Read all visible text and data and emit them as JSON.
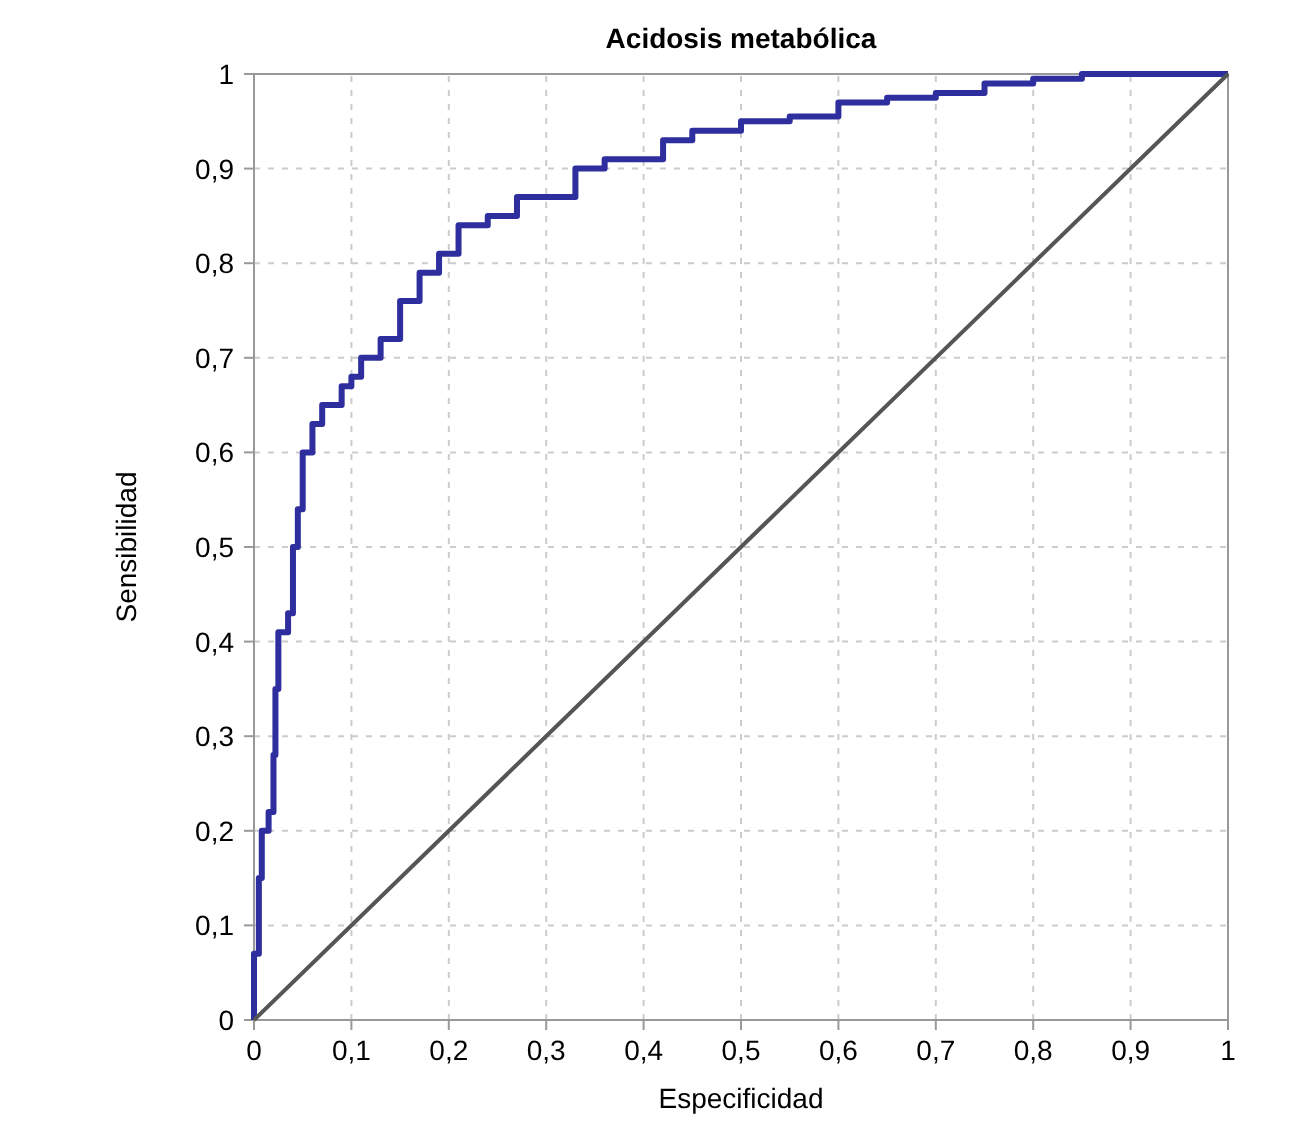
{
  "chart_data": {
    "type": "step",
    "title": "Acidosis metabólica",
    "xlabel": "Especificidad",
    "ylabel": "Sensibilidad",
    "xlim": [
      0,
      1
    ],
    "ylim": [
      0,
      1
    ],
    "xticks": [
      0,
      {
        "value": 0.1,
        "label": "0,1"
      },
      {
        "value": 0.2,
        "label": "0,2"
      },
      {
        "value": 0.3,
        "label": "0,3"
      },
      {
        "value": 0.4,
        "label": "0,4"
      },
      {
        "value": 0.5,
        "label": "0,5"
      },
      {
        "value": 0.6,
        "label": "0,6"
      },
      {
        "value": 0.7,
        "label": "0,7"
      },
      {
        "value": 0.8,
        "label": "0,8"
      },
      {
        "value": 0.9,
        "label": "0,9"
      },
      1
    ],
    "yticks": [
      0,
      {
        "value": 0.1,
        "label": "0,1"
      },
      {
        "value": 0.2,
        "label": "0,2"
      },
      {
        "value": 0.3,
        "label": "0,3"
      },
      {
        "value": 0.4,
        "label": "0,4"
      },
      {
        "value": 0.5,
        "label": "0,5"
      },
      {
        "value": 0.6,
        "label": "0,6"
      },
      {
        "value": 0.7,
        "label": "0,7"
      },
      {
        "value": 0.8,
        "label": "0,8"
      },
      {
        "value": 0.9,
        "label": "0,9"
      },
      1
    ],
    "grid": true,
    "line_style": "solid",
    "marker": "none",
    "series": [
      {
        "type": "step",
        "color": "#2e2e9e",
        "x": [
          0,
          0,
          0.005,
          0.008,
          0.015,
          0.02,
          0.022,
          0.025,
          0.035,
          0.04,
          0.045,
          0.05,
          0.06,
          0.07,
          0.08,
          0.09,
          0.1,
          0.11,
          0.13,
          0.15,
          0.17,
          0.19,
          0.21,
          0.24,
          0.27,
          0.3,
          0.33,
          0.36,
          0.4,
          0.42,
          0.45,
          0.5,
          0.55,
          0.6,
          0.65,
          0.7,
          0.75,
          0.8,
          0.85,
          1
        ],
        "values": [
          0,
          0.07,
          0.15,
          0.2,
          0.22,
          0.28,
          0.35,
          0.41,
          0.43,
          0.5,
          0.54,
          0.6,
          0.63,
          0.65,
          0.65,
          0.67,
          0.68,
          0.7,
          0.72,
          0.76,
          0.79,
          0.81,
          0.84,
          0.85,
          0.87,
          0.87,
          0.9,
          0.91,
          0.91,
          0.93,
          0.94,
          0.95,
          0.955,
          0.97,
          0.975,
          0.98,
          0.99,
          0.995,
          1,
          1
        ]
      },
      {
        "type": "line",
        "color": "#555555",
        "x": [
          0,
          1
        ],
        "values": [
          0,
          1
        ]
      }
    ]
  }
}
